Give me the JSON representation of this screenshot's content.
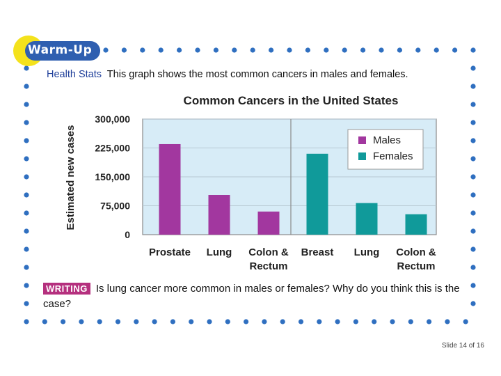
{
  "badge": {
    "label": "Warm-Up"
  },
  "intro": {
    "lead": "Health Stats",
    "text": "This graph shows the most common cancers in males and females."
  },
  "chart_data": {
    "type": "bar",
    "title": "Common Cancers in the United States",
    "ylabel": "Estimated new cases",
    "xlabel": "",
    "ylim": [
      0,
      300000
    ],
    "yticks": [
      "300,000",
      "225,000",
      "150,000",
      "75,000",
      "0"
    ],
    "grid": true,
    "legend_position": "top-right",
    "categories": [
      "Prostate",
      "Lung",
      "Colon & Rectum",
      "Breast",
      "Lung",
      "Colon & Rectum"
    ],
    "series": [
      {
        "name": "Males",
        "color": "#a2379f",
        "values": [
          235000,
          103000,
          60000,
          null,
          null,
          null
        ]
      },
      {
        "name": "Females",
        "color": "#109a9a",
        "values": [
          null,
          null,
          null,
          210000,
          82000,
          53000
        ]
      }
    ]
  },
  "writing": {
    "tag": "WRITING",
    "text": "Is lung cancer more common in males or females? Why do you think this is the case?"
  },
  "footer": {
    "slide_number": "Slide 14 of 16"
  }
}
